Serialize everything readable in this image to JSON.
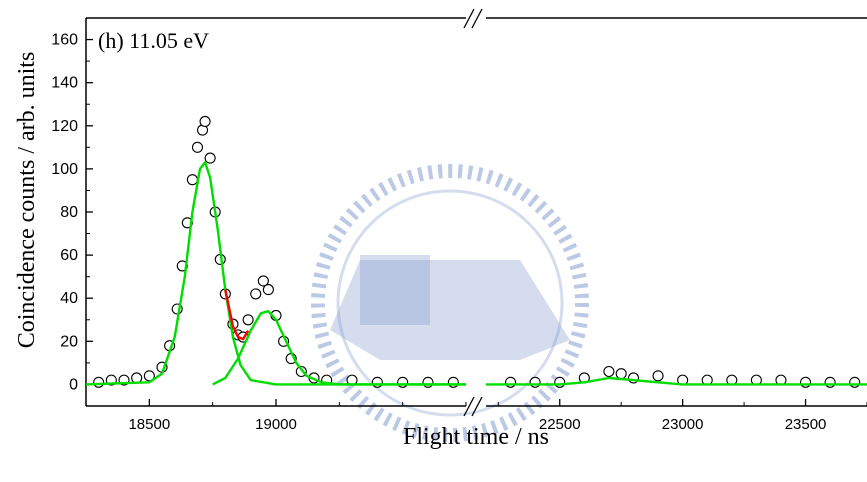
{
  "chart_data": {
    "type": "scatter",
    "title": "",
    "annotation": "(h) 11.05 eV",
    "xlabel": "Flight time / ns",
    "ylabel": "Coincidence counts / arb. units",
    "ylim": [
      -10,
      170
    ],
    "y_ticks": [
      0,
      20,
      40,
      60,
      80,
      100,
      120,
      140,
      160
    ],
    "broken_x_axis": true,
    "x_segments": [
      {
        "xlim": [
          18250,
          19750
        ],
        "ticks": [
          18500,
          19000
        ],
        "tick_labels": [
          "18500",
          "19000"
        ]
      },
      {
        "xlim": [
          22200,
          23750
        ],
        "ticks": [
          22500,
          23000,
          23500
        ],
        "tick_labels": [
          "22500",
          "23000",
          "23500"
        ]
      }
    ],
    "grid": false,
    "colors": {
      "data": "#000000",
      "component_fit": "#00dd00",
      "sum_fit": "#ff0000",
      "watermark": "#5b7cc0"
    },
    "series": [
      {
        "name": "",
        "style": "open-circle",
        "points": [
          [
            18300,
            1
          ],
          [
            18350,
            2
          ],
          [
            18400,
            2
          ],
          [
            18450,
            3
          ],
          [
            18500,
            4
          ],
          [
            18550,
            8
          ],
          [
            18580,
            18
          ],
          [
            18610,
            35
          ],
          [
            18630,
            55
          ],
          [
            18650,
            75
          ],
          [
            18670,
            95
          ],
          [
            18690,
            110
          ],
          [
            18710,
            118
          ],
          [
            18720,
            122
          ],
          [
            18740,
            105
          ],
          [
            18760,
            80
          ],
          [
            18780,
            58
          ],
          [
            18800,
            42
          ],
          [
            18830,
            28
          ],
          [
            18850,
            23
          ],
          [
            18870,
            22
          ],
          [
            18890,
            30
          ],
          [
            18920,
            42
          ],
          [
            18950,
            48
          ],
          [
            18970,
            44
          ],
          [
            19000,
            32
          ],
          [
            19030,
            20
          ],
          [
            19060,
            12
          ],
          [
            19100,
            6
          ],
          [
            19150,
            3
          ],
          [
            19200,
            2
          ],
          [
            19300,
            2
          ],
          [
            19400,
            1
          ],
          [
            19500,
            1
          ],
          [
            19600,
            1
          ],
          [
            19700,
            1
          ],
          [
            22300,
            1
          ],
          [
            22400,
            1
          ],
          [
            22500,
            1
          ],
          [
            22600,
            3
          ],
          [
            22700,
            6
          ],
          [
            22750,
            5
          ],
          [
            22800,
            3
          ],
          [
            22900,
            4
          ],
          [
            23000,
            2
          ],
          [
            23100,
            2
          ],
          [
            23200,
            2
          ],
          [
            23300,
            2
          ],
          [
            23400,
            2
          ],
          [
            23500,
            1
          ],
          [
            23600,
            1
          ],
          [
            23700,
            1
          ]
        ]
      },
      {
        "name": "",
        "style": "green-line",
        "points": [
          [
            18250,
            0
          ],
          [
            18500,
            1
          ],
          [
            18550,
            5
          ],
          [
            18600,
            22
          ],
          [
            18640,
            50
          ],
          [
            18670,
            80
          ],
          [
            18700,
            100
          ],
          [
            18720,
            103
          ],
          [
            18740,
            96
          ],
          [
            18770,
            72
          ],
          [
            18800,
            44
          ],
          [
            18830,
            22
          ],
          [
            18860,
            9
          ],
          [
            18900,
            2
          ],
          [
            19000,
            0
          ],
          [
            19750,
            0
          ]
        ]
      },
      {
        "name": "",
        "style": "green-line",
        "points": [
          [
            18750,
            0
          ],
          [
            18800,
            3
          ],
          [
            18850,
            12
          ],
          [
            18900,
            25
          ],
          [
            18940,
            33
          ],
          [
            18970,
            34
          ],
          [
            19000,
            30
          ],
          [
            19040,
            20
          ],
          [
            19080,
            10
          ],
          [
            19120,
            4
          ],
          [
            19180,
            1
          ],
          [
            19250,
            0
          ],
          [
            19750,
            0
          ]
        ]
      },
      {
        "name": "",
        "style": "red-line",
        "points": [
          [
            18800,
            44
          ],
          [
            18830,
            27
          ],
          [
            18850,
            22
          ],
          [
            18870,
            21
          ],
          [
            18890,
            25
          ]
        ]
      },
      {
        "name": "",
        "style": "green-line",
        "points": [
          [
            22200,
            0
          ],
          [
            22500,
            0
          ],
          [
            22600,
            1
          ],
          [
            22700,
            3
          ],
          [
            22800,
            2
          ],
          [
            22900,
            1
          ],
          [
            23000,
            0
          ],
          [
            23750,
            0
          ]
        ]
      }
    ]
  }
}
